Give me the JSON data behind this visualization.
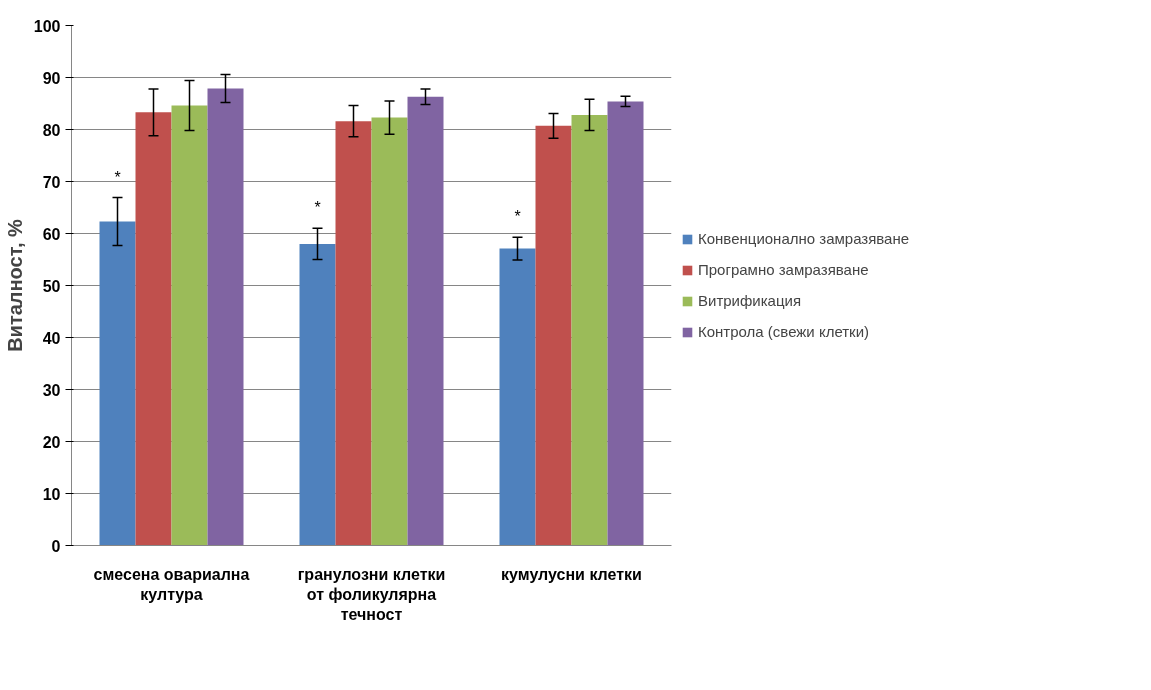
{
  "chart_data": {
    "type": "bar",
    "ylabel": "Виталност, %",
    "categories": [
      "смесена овариална култура",
      "гранулозни клетки от фоликулярна течност",
      "кумулусни клетки"
    ],
    "series": [
      {
        "name": "Конвенционално замразяване",
        "color": "#4f81bd",
        "values": [
          62.3,
          58.0,
          57.1
        ],
        "errors": [
          4.6,
          3.0,
          2.2
        ]
      },
      {
        "name": "Програмно замразяване",
        "color": "#c0504d",
        "values": [
          83.3,
          81.6,
          80.7
        ],
        "errors": [
          4.5,
          3.0,
          2.4
        ]
      },
      {
        "name": "Витрификация",
        "color": "#9bbb59",
        "values": [
          84.6,
          82.3,
          82.8
        ],
        "errors": [
          4.8,
          3.2,
          3.0
        ]
      },
      {
        "name": "Контрола (свежи клетки)",
        "color": "#8064a2",
        "values": [
          87.9,
          86.3,
          85.4
        ],
        "errors": [
          2.7,
          1.5,
          1.0
        ]
      }
    ],
    "annotations": [
      "*",
      "*",
      "*"
    ],
    "ylim": [
      0,
      100
    ],
    "yticks": [
      0,
      10,
      20,
      30,
      40,
      50,
      60,
      70,
      80,
      90,
      100
    ],
    "grid": "y",
    "legend": "right"
  }
}
